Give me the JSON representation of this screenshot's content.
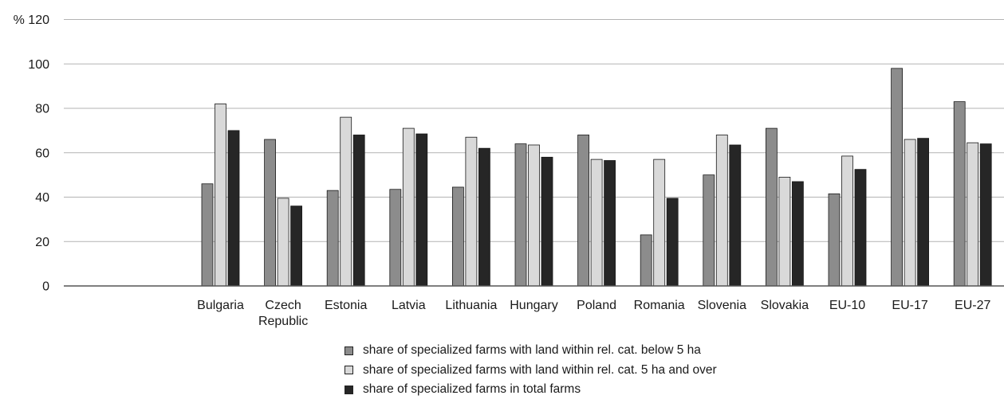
{
  "chart_data": {
    "type": "bar",
    "title": "",
    "xlabel": "",
    "ylabel": "%",
    "ylim": [
      0,
      120
    ],
    "yticks": [
      0,
      20,
      40,
      60,
      80,
      100,
      120
    ],
    "ytick_labels": [
      "0",
      "20",
      "40",
      "60",
      "80",
      "100",
      "% 120"
    ],
    "grid": true,
    "legend_position": "bottom",
    "categories": [
      "",
      "",
      "Bulgaria",
      "Czech Republic",
      "Estonia",
      "Latvia",
      "Lithuania",
      "Hungary",
      "Poland",
      "Romania",
      "Slovenia",
      "Slovakia",
      "EU-10",
      "EU-17",
      "EU-27"
    ],
    "series": [
      {
        "name": "share of specialized  farms with land within rel. cat. below 5 ha",
        "color": "#8c8c8c",
        "values": [
          null,
          null,
          46,
          66,
          43,
          43.5,
          44.5,
          64,
          68,
          23,
          50,
          71,
          41.5,
          98,
          83
        ]
      },
      {
        "name": "share of specialized  farms with land within rel. cat. 5 ha and over",
        "color": "#d9d9d9",
        "values": [
          null,
          null,
          82,
          39.5,
          76,
          71,
          67,
          63.5,
          57,
          57,
          68,
          49,
          58.5,
          66,
          64.5
        ]
      },
      {
        "name": "share of specialized farms in total farms",
        "color": "#262626",
        "values": [
          null,
          null,
          70,
          36,
          68,
          68.5,
          62,
          58,
          56.5,
          39.5,
          63.5,
          47,
          52.5,
          66.5,
          64
        ]
      }
    ]
  }
}
